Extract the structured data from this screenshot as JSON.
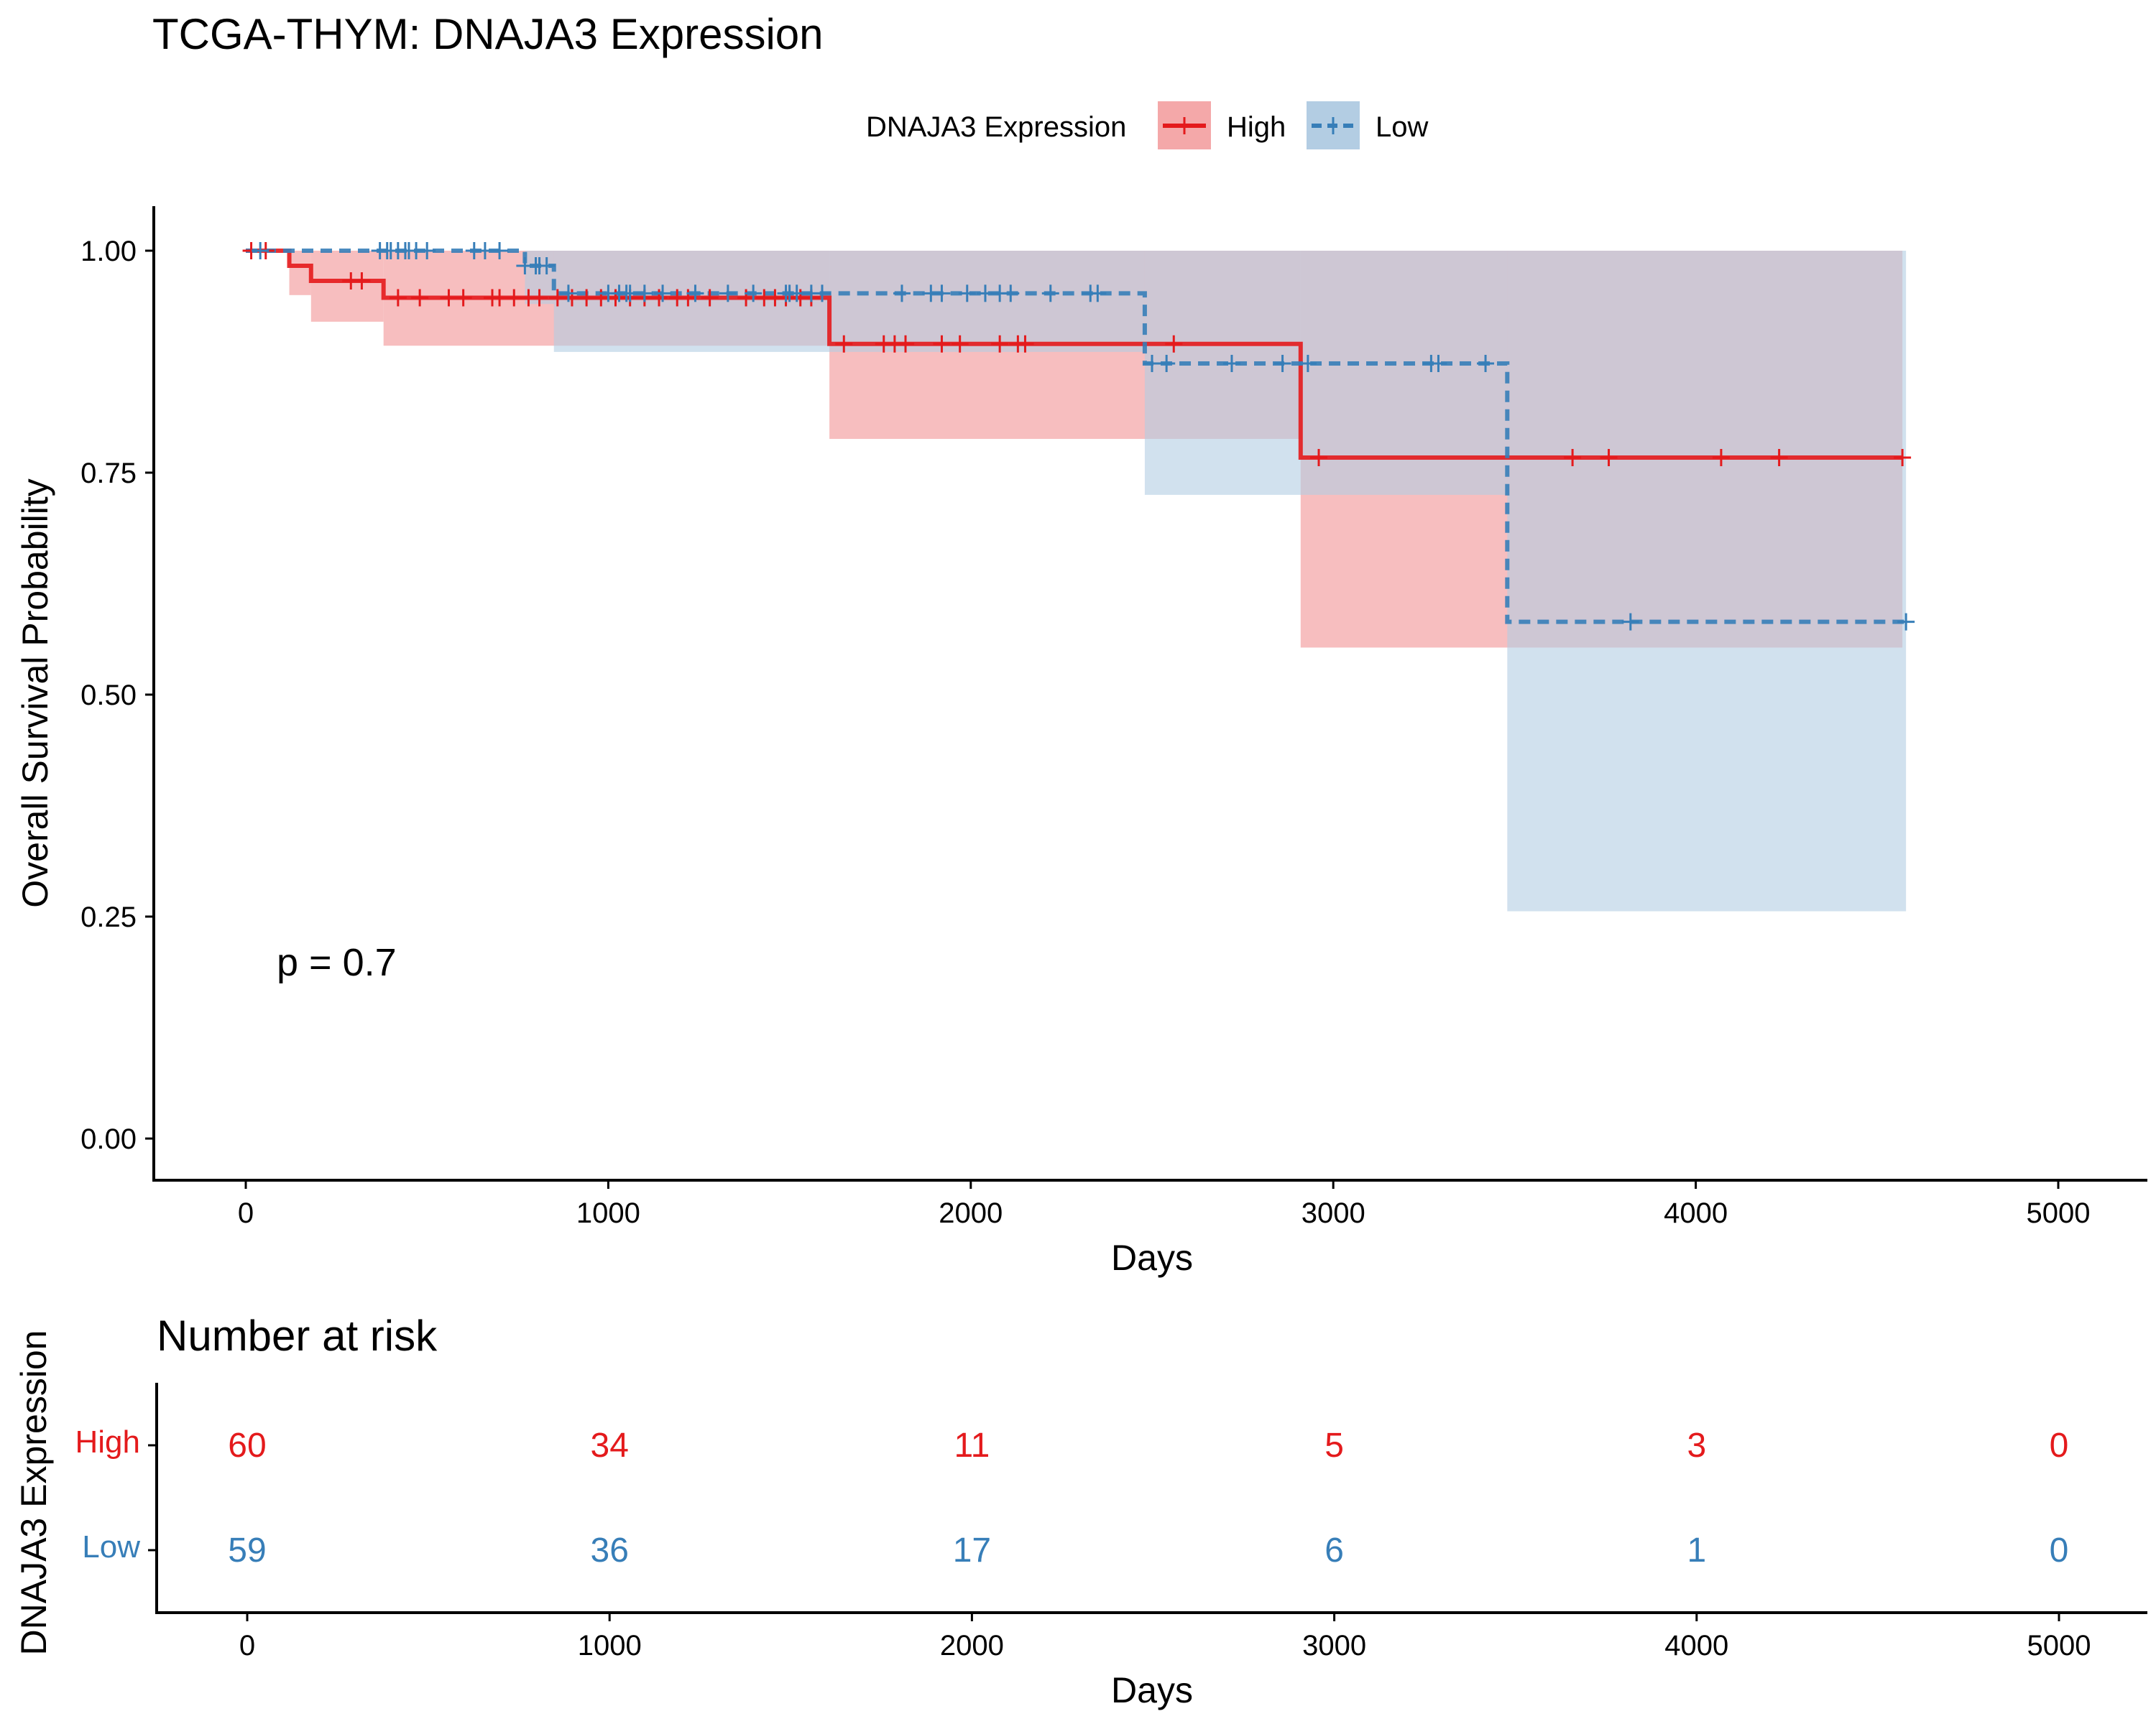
{
  "title": "TCGA-THYM: DNAJA3 Expression",
  "legend": {
    "title": "DNAJA3 Expression",
    "items": [
      {
        "label": "High",
        "color": "#e41a1c",
        "fill": "#f4a8a9",
        "dash": false
      },
      {
        "label": "Low",
        "color": "#377eb8",
        "fill": "#b3cde3",
        "dash": true
      }
    ]
  },
  "chart_data": [
    {
      "type": "line",
      "subtype": "kaplan-meier",
      "xlabel": "Days",
      "ylabel": "Overall Survival Probability",
      "xlim": [
        -250,
        5250
      ],
      "ylim": [
        -0.04,
        1.05
      ],
      "xticks": [
        0,
        1000,
        2000,
        3000,
        4000,
        5000
      ],
      "yticks": [
        0.0,
        0.25,
        0.5,
        0.75,
        1.0
      ],
      "ytick_labels": [
        "0.00",
        "0.25",
        "0.50",
        "0.75",
        "1.00"
      ],
      "pvalue_text": "p = 0.7",
      "grid": false,
      "legend_position": "top",
      "series": [
        {
          "name": "High",
          "color": "#e41a1c",
          "steps": [
            [
              0,
              1.0
            ],
            [
              120,
              0.983
            ],
            [
              180,
              0.966
            ],
            [
              380,
              0.947
            ],
            [
              1610,
              0.895
            ],
            [
              2910,
              0.767
            ],
            [
              4570,
              0.767
            ]
          ],
          "ci": [
            [
              0,
              1.0,
              1.0
            ],
            [
              120,
              1.0,
              0.95
            ],
            [
              180,
              1.0,
              0.92
            ],
            [
              380,
              1.0,
              0.893
            ],
            [
              1610,
              1.0,
              0.788
            ],
            [
              2910,
              1.0,
              0.553
            ],
            [
              4570,
              1.0,
              0.553
            ]
          ],
          "censor": [
            15,
            55,
            290,
            320,
            420,
            480,
            560,
            600,
            680,
            700,
            740,
            780,
            810,
            860,
            900,
            940,
            980,
            1020,
            1060,
            1100,
            1140,
            1190,
            1220,
            1280,
            1380,
            1430,
            1460,
            1490,
            1530,
            1560,
            1650,
            1760,
            1790,
            1820,
            1920,
            1970,
            2080,
            2130,
            2150,
            2560,
            2960,
            3660,
            3760,
            4070,
            4230,
            4570
          ]
        },
        {
          "name": "Low",
          "color": "#377eb8",
          "steps": [
            [
              0,
              1.0
            ],
            [
              770,
              0.983
            ],
            [
              850,
              0.952
            ],
            [
              2480,
              0.873
            ],
            [
              3480,
              0.582
            ],
            [
              4580,
              0.582
            ]
          ],
          "ci": [
            [
              0,
              1.0,
              1.0
            ],
            [
              770,
              1.0,
              0.94
            ],
            [
              850,
              1.0,
              0.886
            ],
            [
              2480,
              1.0,
              0.725
            ],
            [
              3480,
              1.0,
              0.256
            ],
            [
              4580,
              1.0,
              0.256
            ]
          ],
          "censor": [
            40,
            370,
            390,
            400,
            420,
            440,
            450,
            470,
            500,
            630,
            660,
            700,
            770,
            800,
            810,
            830,
            890,
            1000,
            1030,
            1050,
            1060,
            1100,
            1150,
            1240,
            1330,
            1400,
            1490,
            1500,
            1520,
            1560,
            1590,
            1810,
            1890,
            1920,
            1990,
            2040,
            2080,
            2110,
            2220,
            2330,
            2350,
            2500,
            2540,
            2720,
            2860,
            2930,
            3270,
            3290,
            3420,
            3820,
            4580
          ]
        }
      ]
    },
    {
      "type": "table",
      "title": "Number at risk",
      "xlabel": "Days",
      "ylabel": "DNAJA3 Expression",
      "xlim": [
        -250,
        5250
      ],
      "xticks": [
        0,
        1000,
        2000,
        3000,
        4000,
        5000
      ],
      "rows": [
        {
          "name": "High",
          "color": "#e41a1c",
          "values": [
            60,
            34,
            11,
            5,
            3,
            0
          ]
        },
        {
          "name": "Low",
          "color": "#377eb8",
          "values": [
            59,
            36,
            17,
            6,
            1,
            0
          ]
        }
      ]
    }
  ]
}
